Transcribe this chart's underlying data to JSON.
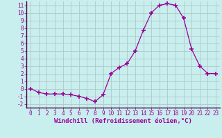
{
  "x": [
    0,
    1,
    2,
    3,
    4,
    5,
    6,
    7,
    8,
    9,
    10,
    11,
    12,
    13,
    14,
    15,
    16,
    17,
    18,
    19,
    20,
    21,
    22,
    23
  ],
  "y": [
    0.0,
    -0.5,
    -0.7,
    -0.7,
    -0.7,
    -0.8,
    -1.0,
    -1.3,
    -1.7,
    -0.8,
    2.0,
    2.8,
    3.3,
    5.0,
    7.7,
    10.0,
    11.0,
    11.2,
    11.0,
    9.3,
    5.2,
    3.0,
    2.0,
    2.0
  ],
  "line_color": "#990099",
  "marker": "+",
  "marker_size": 4,
  "marker_lw": 1.2,
  "bg_color": "#c8eeed",
  "grid_color": "#b0c8c8",
  "xlabel": "Windchill (Refroidissement éolien,°C)",
  "xlim": [
    -0.5,
    23.5
  ],
  "ylim": [
    -2.5,
    11.5
  ],
  "yticks": [
    -2,
    -1,
    0,
    1,
    2,
    3,
    4,
    5,
    6,
    7,
    8,
    9,
    10,
    11
  ],
  "xticks": [
    0,
    1,
    2,
    3,
    4,
    5,
    6,
    7,
    8,
    9,
    10,
    11,
    12,
    13,
    14,
    15,
    16,
    17,
    18,
    19,
    20,
    21,
    22,
    23
  ],
  "tick_color": "#990099",
  "label_color": "#990099",
  "tick_fontsize": 5.5,
  "xlabel_fontsize": 6.5
}
